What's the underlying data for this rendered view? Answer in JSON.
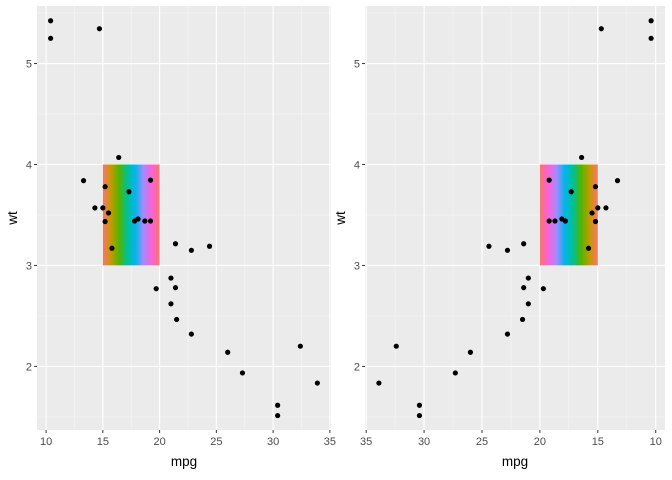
{
  "chart_data": [
    {
      "type": "scatter",
      "xlabel": "mpg",
      "ylabel": "wt",
      "xlim": [
        9.2,
        35.1
      ],
      "ylim": [
        1.37,
        5.57
      ],
      "x_reversed": false,
      "x_ticks": [
        10,
        15,
        20,
        25,
        30,
        35
      ],
      "y_ticks": [
        2,
        3,
        4,
        5
      ],
      "gradient_rect": {
        "x": [
          15,
          20
        ],
        "y": [
          3,
          4
        ]
      },
      "gradient_colors": [
        "#F8766D",
        "#C49A00",
        "#53B400",
        "#00C094",
        "#00B6EB",
        "#A58AFF",
        "#FB61D7",
        "#F8766D"
      ],
      "points": [
        {
          "x": 21.0,
          "y": 2.62
        },
        {
          "x": 21.0,
          "y": 2.875
        },
        {
          "x": 22.8,
          "y": 2.32
        },
        {
          "x": 21.4,
          "y": 3.215
        },
        {
          "x": 18.7,
          "y": 3.44
        },
        {
          "x": 18.1,
          "y": 3.46
        },
        {
          "x": 14.3,
          "y": 3.57
        },
        {
          "x": 24.4,
          "y": 3.19
        },
        {
          "x": 22.8,
          "y": 3.15
        },
        {
          "x": 19.2,
          "y": 3.44
        },
        {
          "x": 17.8,
          "y": 3.44
        },
        {
          "x": 16.4,
          "y": 4.07
        },
        {
          "x": 17.3,
          "y": 3.73
        },
        {
          "x": 15.2,
          "y": 3.78
        },
        {
          "x": 10.4,
          "y": 5.25
        },
        {
          "x": 10.4,
          "y": 5.424
        },
        {
          "x": 14.7,
          "y": 5.345
        },
        {
          "x": 32.4,
          "y": 2.2
        },
        {
          "x": 30.4,
          "y": 1.615
        },
        {
          "x": 33.9,
          "y": 1.835
        },
        {
          "x": 21.5,
          "y": 2.465
        },
        {
          "x": 15.5,
          "y": 3.52
        },
        {
          "x": 15.2,
          "y": 3.435
        },
        {
          "x": 13.3,
          "y": 3.84
        },
        {
          "x": 19.2,
          "y": 3.845
        },
        {
          "x": 27.3,
          "y": 1.935
        },
        {
          "x": 26.0,
          "y": 2.14
        },
        {
          "x": 30.4,
          "y": 1.513
        },
        {
          "x": 15.8,
          "y": 3.17
        },
        {
          "x": 19.7,
          "y": 2.77
        },
        {
          "x": 15.0,
          "y": 3.57
        },
        {
          "x": 21.4,
          "y": 2.78
        }
      ]
    },
    {
      "type": "scatter",
      "xlabel": "mpg",
      "ylabel": "wt",
      "xlim": [
        35.1,
        9.2
      ],
      "ylim": [
        1.37,
        5.57
      ],
      "x_reversed": true,
      "x_ticks": [
        35,
        30,
        25,
        20,
        15,
        10
      ],
      "y_ticks": [
        2,
        3,
        4,
        5
      ],
      "gradient_rect": {
        "x": [
          15,
          20
        ],
        "y": [
          3,
          4
        ]
      },
      "gradient_colors": [
        "#F8766D",
        "#C49A00",
        "#53B400",
        "#00C094",
        "#00B6EB",
        "#A58AFF",
        "#FB61D7",
        "#F8766D"
      ],
      "points": [
        {
          "x": 21.0,
          "y": 2.62
        },
        {
          "x": 21.0,
          "y": 2.875
        },
        {
          "x": 22.8,
          "y": 2.32
        },
        {
          "x": 21.4,
          "y": 3.215
        },
        {
          "x": 18.7,
          "y": 3.44
        },
        {
          "x": 18.1,
          "y": 3.46
        },
        {
          "x": 14.3,
          "y": 3.57
        },
        {
          "x": 24.4,
          "y": 3.19
        },
        {
          "x": 22.8,
          "y": 3.15
        },
        {
          "x": 19.2,
          "y": 3.44
        },
        {
          "x": 17.8,
          "y": 3.44
        },
        {
          "x": 16.4,
          "y": 4.07
        },
        {
          "x": 17.3,
          "y": 3.73
        },
        {
          "x": 15.2,
          "y": 3.78
        },
        {
          "x": 10.4,
          "y": 5.25
        },
        {
          "x": 10.4,
          "y": 5.424
        },
        {
          "x": 14.7,
          "y": 5.345
        },
        {
          "x": 32.4,
          "y": 2.2
        },
        {
          "x": 30.4,
          "y": 1.615
        },
        {
          "x": 33.9,
          "y": 1.835
        },
        {
          "x": 21.5,
          "y": 2.465
        },
        {
          "x": 15.5,
          "y": 3.52
        },
        {
          "x": 15.2,
          "y": 3.435
        },
        {
          "x": 13.3,
          "y": 3.84
        },
        {
          "x": 19.2,
          "y": 3.845
        },
        {
          "x": 27.3,
          "y": 1.935
        },
        {
          "x": 26.0,
          "y": 2.14
        },
        {
          "x": 30.4,
          "y": 1.513
        },
        {
          "x": 15.8,
          "y": 3.17
        },
        {
          "x": 19.7,
          "y": 2.77
        },
        {
          "x": 15.0,
          "y": 3.57
        },
        {
          "x": 21.4,
          "y": 2.78
        }
      ]
    }
  ]
}
